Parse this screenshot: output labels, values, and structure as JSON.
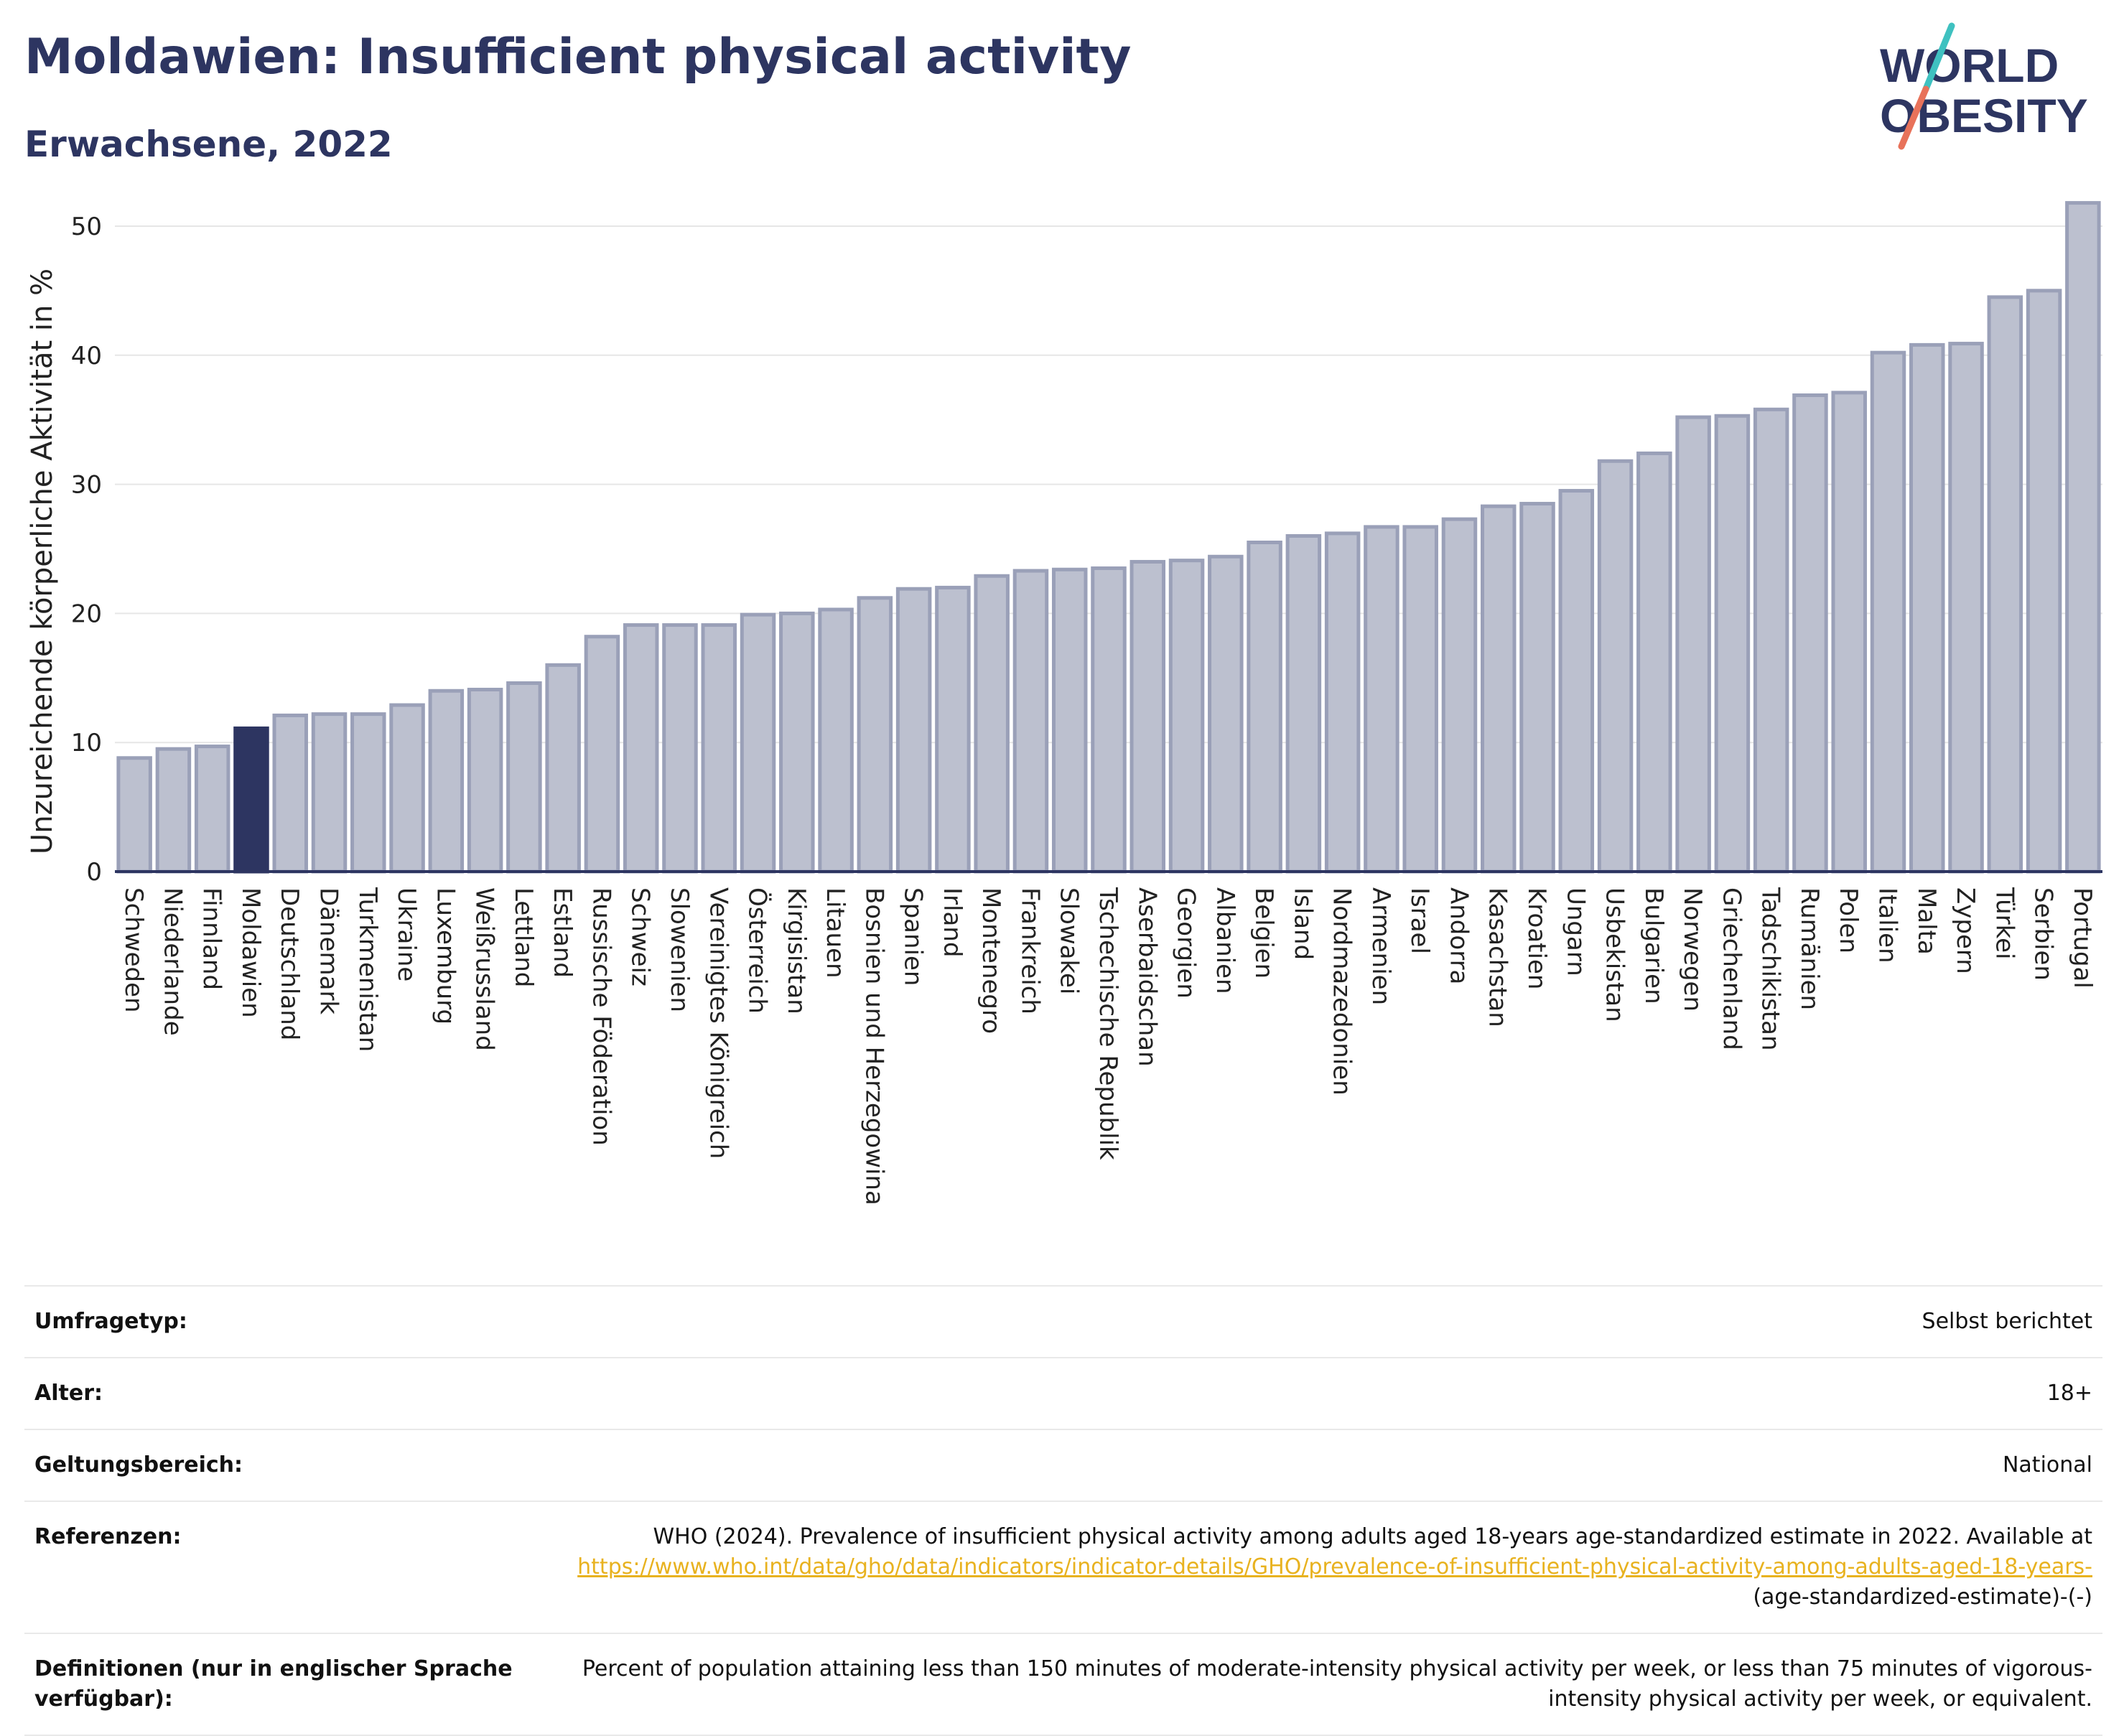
{
  "header": {
    "title": "Moldawien: Insufficient physical activity",
    "subtitle": "Erwachsene, 2022"
  },
  "logo": {
    "line1": "WORLD",
    "line2": "OBESITY",
    "accent_colors": [
      "#3fc1c0",
      "#e8725a"
    ]
  },
  "chart_data": {
    "type": "bar",
    "ylabel": "Unzureichende körperliche Aktivität in %",
    "xlabel": "",
    "ylim": [
      0,
      52.5
    ],
    "yticks": [
      0,
      10,
      20,
      30,
      40,
      50
    ],
    "grid": true,
    "highlight": "Moldawien",
    "colors": {
      "bar": "#bcc0cf",
      "bar_edge": "#9aa0b8",
      "highlight": "#2d3561",
      "grid": "#e6e6e6",
      "axis": "#2d3561"
    },
    "categories": [
      "Schweden",
      "Niederlande",
      "Finnland",
      "Moldawien",
      "Deutschland",
      "Dänemark",
      "Turkmenistan",
      "Ukraine",
      "Luxemburg",
      "Weißrussland",
      "Lettland",
      "Estland",
      "Russische Föderation",
      "Schweiz",
      "Slowenien",
      "Vereinigtes Königreich",
      "Österreich",
      "Kirgisistan",
      "Litauen",
      "Bosnien und Herzegowina",
      "Spanien",
      "Irland",
      "Montenegro",
      "Frankreich",
      "Slowakei",
      "Tschechische Republik",
      "Aserbaidschan",
      "Georgien",
      "Albanien",
      "Belgien",
      "Island",
      "Nordmazedonien",
      "Armenien",
      "Israel",
      "Andorra",
      "Kasachstan",
      "Kroatien",
      "Ungarn",
      "Usbekistan",
      "Bulgarien",
      "Norwegen",
      "Griechenland",
      "Tadschikistan",
      "Rumänien",
      "Polen",
      "Italien",
      "Malta",
      "Zypern",
      "Türkei",
      "Serbien",
      "Portugal"
    ],
    "values": [
      8.8,
      9.5,
      9.7,
      11.1,
      12.1,
      12.2,
      12.2,
      12.9,
      14.0,
      14.1,
      14.6,
      16.0,
      18.2,
      19.1,
      19.1,
      19.1,
      19.9,
      20.0,
      20.3,
      21.2,
      21.9,
      22.0,
      22.9,
      23.3,
      23.4,
      23.5,
      24.0,
      24.1,
      24.4,
      25.5,
      26.0,
      26.2,
      26.7,
      26.7,
      27.3,
      28.3,
      28.5,
      29.5,
      31.8,
      32.4,
      35.2,
      35.3,
      35.8,
      36.9,
      37.1,
      40.2,
      40.8,
      40.9,
      44.5,
      45.0,
      51.8
    ]
  },
  "info": {
    "rows": [
      {
        "label": "Umfragetyp:",
        "value": "Selbst berichtet"
      },
      {
        "label": "Alter:",
        "value": "18+"
      },
      {
        "label": "Geltungsbereich:",
        "value": "National"
      }
    ],
    "references": {
      "label": "Referenzen:",
      "text": "WHO (2024). Prevalence of insufficient physical activity among adults aged 18-years age-standardized estimate in 2022. Available at",
      "link": "https://www.who.int/data/gho/data/indicators/indicator-details/GHO/prevalence-of-insufficient-physical-activity-among-adults-aged-18-years-",
      "suffix": "(age-standardized-estimate)-(-)"
    },
    "definitions": {
      "label": "Definitionen (nur in englischer Sprache verfügbar):",
      "value": "Percent of population attaining less than 150 minutes of moderate-intensity physical activity per week, or less than 75 minutes of vigorous-intensity physical activity per week, or equivalent."
    }
  }
}
